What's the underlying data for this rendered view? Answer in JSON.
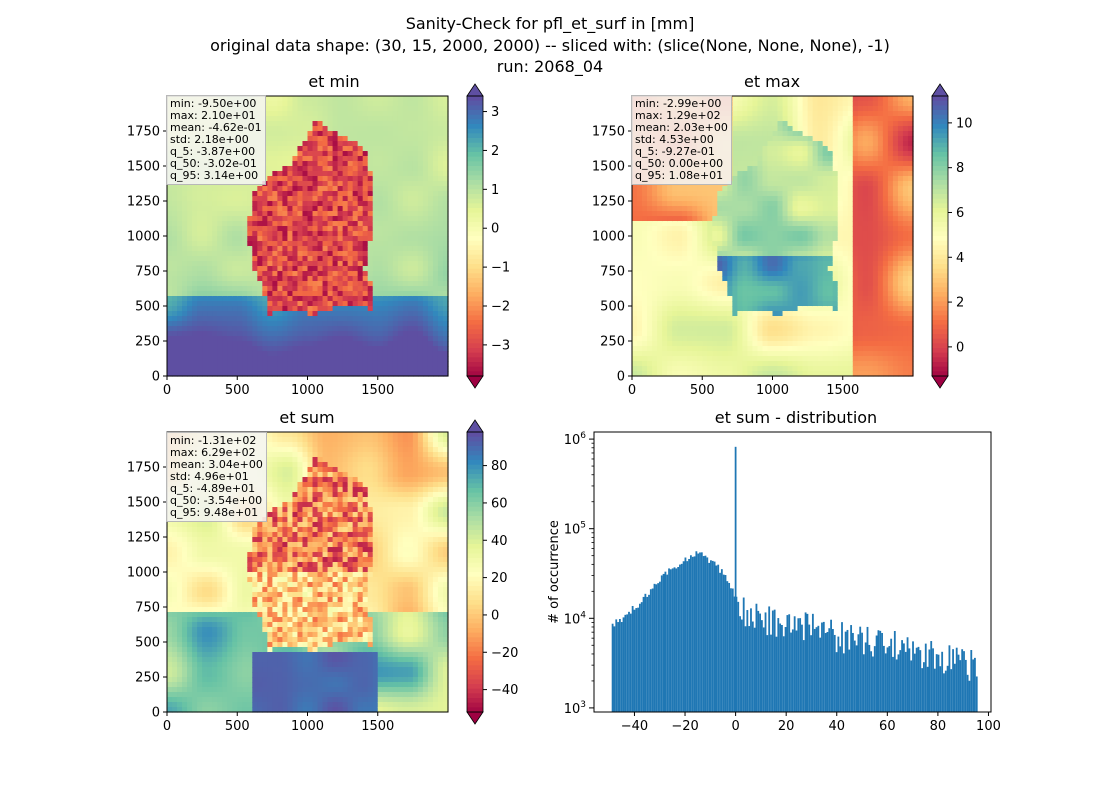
{
  "suptitle": {
    "line1": "Sanity-Check for pfl_et_surf in [mm]",
    "line2": "original data shape: (30, 15, 2000, 2000) -- sliced with: (slice(None, None, None), -1)",
    "line3": "run: 2068_04"
  },
  "colormap": "Spectral",
  "colors": {
    "hist_bar": "#1f77b4",
    "spectral_low": "#9e0142",
    "spectral_mid": "#ffffbf",
    "spectral_high": "#5e4fa2"
  },
  "chart_data": [
    {
      "type": "heatmap",
      "title": "et min",
      "xticks": [
        "0",
        "500",
        "1000",
        "1500"
      ],
      "yticks": [
        "0",
        "250",
        "500",
        "750",
        "1000",
        "1250",
        "1500",
        "1750"
      ],
      "xlim": [
        0,
        2000
      ],
      "ylim": [
        0,
        2000
      ],
      "colorbar": {
        "range": [
          -3.8,
          3.4
        ],
        "ticks": [
          "3",
          "2",
          "1",
          "0",
          "−1",
          "−2",
          "−3"
        ],
        "tick_values": [
          3,
          2,
          1,
          0,
          -1,
          -2,
          -3
        ]
      },
      "stats": [
        "min: -9.50e+00",
        "max: 2.10e+01",
        "mean: -4.62e-01",
        "std: 2.18e+00",
        "q_5: -3.87e+00",
        "q_50: -3.02e-01",
        "q_95: 3.14e+00"
      ]
    },
    {
      "type": "heatmap",
      "title": "et max",
      "xticks": [
        "0",
        "500",
        "1000",
        "1500"
      ],
      "yticks": [
        "0",
        "250",
        "500",
        "750",
        "1000",
        "1250",
        "1500",
        "1750"
      ],
      "xlim": [
        0,
        2000
      ],
      "ylim": [
        0,
        2000
      ],
      "colorbar": {
        "range": [
          -1.3,
          11.2
        ],
        "ticks": [
          "10",
          "8",
          "6",
          "4",
          "2",
          "0"
        ],
        "tick_values": [
          10,
          8,
          6,
          4,
          2,
          0
        ]
      },
      "stats": [
        "min: -2.99e+00",
        "max: 1.29e+02",
        "mean: 2.03e+00",
        "std: 4.53e+00",
        "q_5: -9.27e-01",
        "q_50: 0.00e+00",
        "q_95: 1.08e+01"
      ]
    },
    {
      "type": "heatmap",
      "title": "et sum",
      "xticks": [
        "0",
        "500",
        "1000",
        "1500"
      ],
      "yticks": [
        "0",
        "250",
        "500",
        "750",
        "1000",
        "1250",
        "1500",
        "1750"
      ],
      "xlim": [
        0,
        2000
      ],
      "ylim": [
        0,
        2000
      ],
      "colorbar": {
        "range": [
          -52,
          98
        ],
        "ticks": [
          "80",
          "60",
          "40",
          "20",
          "0",
          "−20",
          "−40"
        ],
        "tick_values": [
          80,
          60,
          40,
          20,
          0,
          -20,
          -40
        ]
      },
      "stats": [
        "min: -1.31e+02",
        "max: 6.29e+02",
        "mean: 3.04e+00",
        "std: 4.96e+01",
        "q_5: -4.89e+01",
        "q_50: -3.54e+00",
        "q_95: 9.48e+01"
      ]
    },
    {
      "type": "bar",
      "title": "et sum - distribution",
      "ylabel": "# of occurrence",
      "yscale": "log",
      "xlim": [
        -56,
        101
      ],
      "ylim": [
        900,
        1200000
      ],
      "xticks": [
        "−40",
        "−20",
        "0",
        "20",
        "40",
        "60",
        "80",
        "100"
      ],
      "xtick_values": [
        -40,
        -20,
        0,
        20,
        40,
        60,
        80,
        100
      ],
      "ytick_values": [
        1000,
        10000,
        100000,
        1000000
      ],
      "bin_range": [
        -49,
        95
      ],
      "bin_width": 0.72,
      "spike": {
        "x": 0,
        "count": 820000
      },
      "profile": [
        {
          "x": -49,
          "count": 8800
        },
        {
          "x": -45,
          "count": 9500
        },
        {
          "x": -40,
          "count": 13000
        },
        {
          "x": -35,
          "count": 18000
        },
        {
          "x": -30,
          "count": 27000
        },
        {
          "x": -25,
          "count": 37000
        },
        {
          "x": -20,
          "count": 45000
        },
        {
          "x": -15,
          "count": 52000
        },
        {
          "x": -10,
          "count": 45000
        },
        {
          "x": -5,
          "count": 32000
        },
        {
          "x": -1,
          "count": 21000
        },
        {
          "x": 1,
          "count": 14500
        },
        {
          "x": 5,
          "count": 13000
        },
        {
          "x": 10,
          "count": 12000
        },
        {
          "x": 20,
          "count": 10000
        },
        {
          "x": 30,
          "count": 8700
        },
        {
          "x": 40,
          "count": 7600
        },
        {
          "x": 50,
          "count": 6600
        },
        {
          "x": 60,
          "count": 5800
        },
        {
          "x": 70,
          "count": 5000
        },
        {
          "x": 80,
          "count": 4300
        },
        {
          "x": 90,
          "count": 3800
        },
        {
          "x": 95,
          "count": 3500
        }
      ]
    }
  ]
}
